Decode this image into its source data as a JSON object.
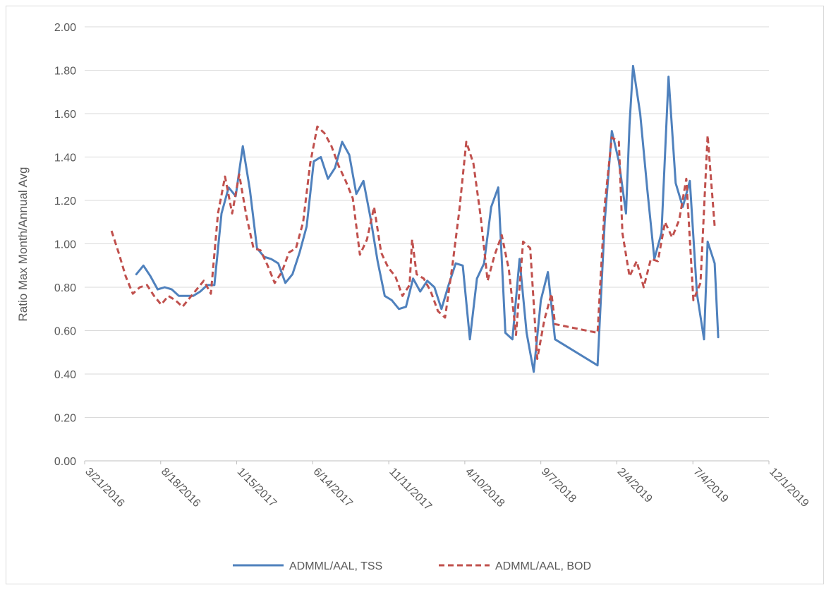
{
  "chart_data": {
    "type": "line",
    "title": "",
    "xlabel": "",
    "ylabel": "Ratio Max Month/Annual Avg",
    "ylim": [
      0,
      2
    ],
    "y_ticks": [
      "0.00",
      "0.20",
      "0.40",
      "0.60",
      "0.80",
      "1.00",
      "1.20",
      "1.40",
      "1.60",
      "1.80",
      "2.00"
    ],
    "x_range": [
      "2016-03-21",
      "2019-12-01"
    ],
    "x_ticks": [
      "3/21/2016",
      "8/18/2016",
      "1/15/2017",
      "6/14/2017",
      "11/11/2017",
      "4/10/2018",
      "9/7/2018",
      "2/4/2019",
      "7/4/2019",
      "12/1/2019"
    ],
    "grid": "horizontal",
    "legend_position": "bottom",
    "series": [
      {
        "name": "ADMML/AAL, TSS",
        "color": "#4f81bd",
        "style": "solid",
        "points": [
          [
            "2016-07-01",
            0.86
          ],
          [
            "2016-07-15",
            0.9
          ],
          [
            "2016-07-29",
            0.85
          ],
          [
            "2016-08-12",
            0.79
          ],
          [
            "2016-08-26",
            0.8
          ],
          [
            "2016-09-09",
            0.79
          ],
          [
            "2016-09-23",
            0.76
          ],
          [
            "2016-10-07",
            0.76
          ],
          [
            "2016-10-21",
            0.76
          ],
          [
            "2016-11-04",
            0.78
          ],
          [
            "2016-11-18",
            0.81
          ],
          [
            "2016-12-02",
            0.81
          ],
          [
            "2016-12-16",
            1.14
          ],
          [
            "2016-12-30",
            1.26
          ],
          [
            "2017-01-13",
            1.22
          ],
          [
            "2017-01-27",
            1.45
          ],
          [
            "2017-02-10",
            1.25
          ],
          [
            "2017-02-24",
            0.98
          ],
          [
            "2017-03-10",
            0.94
          ],
          [
            "2017-03-24",
            0.93
          ],
          [
            "2017-04-07",
            0.91
          ],
          [
            "2017-04-21",
            0.82
          ],
          [
            "2017-05-05",
            0.86
          ],
          [
            "2017-05-19",
            0.96
          ],
          [
            "2017-06-02",
            1.08
          ],
          [
            "2017-06-16",
            1.38
          ],
          [
            "2017-06-30",
            1.4
          ],
          [
            "2017-07-14",
            1.3
          ],
          [
            "2017-07-28",
            1.35
          ],
          [
            "2017-08-11",
            1.47
          ],
          [
            "2017-08-25",
            1.41
          ],
          [
            "2017-09-08",
            1.23
          ],
          [
            "2017-09-22",
            1.29
          ],
          [
            "2017-10-06",
            1.12
          ],
          [
            "2017-10-20",
            0.92
          ],
          [
            "2017-11-03",
            0.76
          ],
          [
            "2017-11-17",
            0.74
          ],
          [
            "2017-12-01",
            0.7
          ],
          [
            "2017-12-15",
            0.71
          ],
          [
            "2017-12-29",
            0.84
          ],
          [
            "2018-01-12",
            0.78
          ],
          [
            "2018-01-26",
            0.83
          ],
          [
            "2018-02-09",
            0.8
          ],
          [
            "2018-02-23",
            0.7
          ],
          [
            "2018-03-09",
            0.81
          ],
          [
            "2018-03-23",
            0.91
          ],
          [
            "2018-04-06",
            0.9
          ],
          [
            "2018-04-20",
            0.56
          ],
          [
            "2018-05-04",
            0.84
          ],
          [
            "2018-05-18",
            0.91
          ],
          [
            "2018-06-01",
            1.17
          ],
          [
            "2018-06-15",
            1.26
          ],
          [
            "2018-06-29",
            0.59
          ],
          [
            "2018-07-13",
            0.56
          ],
          [
            "2018-07-27",
            0.93
          ],
          [
            "2018-08-10",
            0.59
          ],
          [
            "2018-08-24",
            0.41
          ],
          [
            "2018-09-07",
            0.74
          ],
          [
            "2018-09-21",
            0.87
          ],
          [
            "2018-10-05",
            0.56
          ],
          [
            "2018-12-28",
            0.44
          ],
          [
            "2019-01-11",
            1.1
          ],
          [
            "2019-01-25",
            1.52
          ],
          [
            "2019-02-08",
            1.38
          ],
          [
            "2019-02-22",
            1.14
          ],
          [
            "2019-03-01",
            1.55
          ],
          [
            "2019-03-08",
            1.82
          ],
          [
            "2019-03-22",
            1.6
          ],
          [
            "2019-04-05",
            1.25
          ],
          [
            "2019-04-19",
            0.93
          ],
          [
            "2019-05-03",
            1.05
          ],
          [
            "2019-05-17",
            1.77
          ],
          [
            "2019-05-31",
            1.28
          ],
          [
            "2019-06-14",
            1.17
          ],
          [
            "2019-06-28",
            1.29
          ],
          [
            "2019-07-12",
            0.77
          ],
          [
            "2019-07-26",
            0.56
          ],
          [
            "2019-08-02",
            1.01
          ],
          [
            "2019-08-16",
            0.91
          ],
          [
            "2019-08-23",
            0.57
          ]
        ]
      },
      {
        "name": "ADMML/AAL, BOD",
        "color": "#c0504d",
        "style": "dashed",
        "points": [
          [
            "2016-05-13",
            1.06
          ],
          [
            "2016-05-27",
            0.96
          ],
          [
            "2016-06-10",
            0.85
          ],
          [
            "2016-06-24",
            0.77
          ],
          [
            "2016-07-08",
            0.8
          ],
          [
            "2016-07-22",
            0.81
          ],
          [
            "2016-08-05",
            0.76
          ],
          [
            "2016-08-19",
            0.72
          ],
          [
            "2016-09-02",
            0.76
          ],
          [
            "2016-09-16",
            0.74
          ],
          [
            "2016-09-30",
            0.71
          ],
          [
            "2016-10-14",
            0.75
          ],
          [
            "2016-10-28",
            0.79
          ],
          [
            "2016-11-11",
            0.83
          ],
          [
            "2016-11-25",
            0.77
          ],
          [
            "2016-12-09",
            1.14
          ],
          [
            "2016-12-23",
            1.31
          ],
          [
            "2017-01-06",
            1.14
          ],
          [
            "2017-01-20",
            1.32
          ],
          [
            "2017-02-03",
            1.13
          ],
          [
            "2017-02-17",
            0.98
          ],
          [
            "2017-03-03",
            0.97
          ],
          [
            "2017-03-17",
            0.9
          ],
          [
            "2017-03-31",
            0.82
          ],
          [
            "2017-04-14",
            0.87
          ],
          [
            "2017-04-28",
            0.96
          ],
          [
            "2017-05-12",
            0.98
          ],
          [
            "2017-05-26",
            1.1
          ],
          [
            "2017-06-09",
            1.37
          ],
          [
            "2017-06-23",
            1.54
          ],
          [
            "2017-07-07",
            1.51
          ],
          [
            "2017-07-21",
            1.45
          ],
          [
            "2017-08-04",
            1.36
          ],
          [
            "2017-08-18",
            1.29
          ],
          [
            "2017-09-01",
            1.21
          ],
          [
            "2017-09-15",
            0.95
          ],
          [
            "2017-09-29",
            1.02
          ],
          [
            "2017-10-13",
            1.17
          ],
          [
            "2017-10-27",
            0.96
          ],
          [
            "2017-11-10",
            0.89
          ],
          [
            "2017-11-24",
            0.85
          ],
          [
            "2017-12-08",
            0.76
          ],
          [
            "2017-12-22",
            0.81
          ],
          [
            "2017-12-27",
            1.02
          ],
          [
            "2018-01-05",
            0.86
          ],
          [
            "2018-01-19",
            0.84
          ],
          [
            "2018-02-02",
            0.78
          ],
          [
            "2018-02-16",
            0.69
          ],
          [
            "2018-03-02",
            0.66
          ],
          [
            "2018-03-16",
            0.89
          ],
          [
            "2018-03-30",
            1.15
          ],
          [
            "2018-04-13",
            1.47
          ],
          [
            "2018-04-27",
            1.37
          ],
          [
            "2018-05-11",
            1.13
          ],
          [
            "2018-05-25",
            0.83
          ],
          [
            "2018-06-08",
            0.95
          ],
          [
            "2018-06-22",
            1.04
          ],
          [
            "2018-07-06",
            0.88
          ],
          [
            "2018-07-20",
            0.58
          ],
          [
            "2018-08-03",
            1.01
          ],
          [
            "2018-08-17",
            0.98
          ],
          [
            "2018-08-31",
            0.47
          ],
          [
            "2018-09-14",
            0.65
          ],
          [
            "2018-09-28",
            0.77
          ],
          [
            "2018-10-05",
            0.63
          ],
          [
            "2018-12-28",
            0.59
          ],
          [
            "2019-01-11",
            1.18
          ],
          [
            "2019-01-25",
            1.49
          ],
          [
            "2019-02-08",
            1.47
          ],
          [
            "2019-02-15",
            1.05
          ],
          [
            "2019-03-01",
            0.85
          ],
          [
            "2019-03-15",
            0.92
          ],
          [
            "2019-03-29",
            0.8
          ],
          [
            "2019-04-12",
            0.93
          ],
          [
            "2019-04-26",
            0.92
          ],
          [
            "2019-05-10",
            1.1
          ],
          [
            "2019-05-24",
            1.03
          ],
          [
            "2019-06-07",
            1.11
          ],
          [
            "2019-06-21",
            1.3
          ],
          [
            "2019-07-05",
            0.74
          ],
          [
            "2019-07-19",
            0.82
          ],
          [
            "2019-08-02",
            1.5
          ],
          [
            "2019-08-16",
            1.08
          ]
        ]
      }
    ]
  }
}
